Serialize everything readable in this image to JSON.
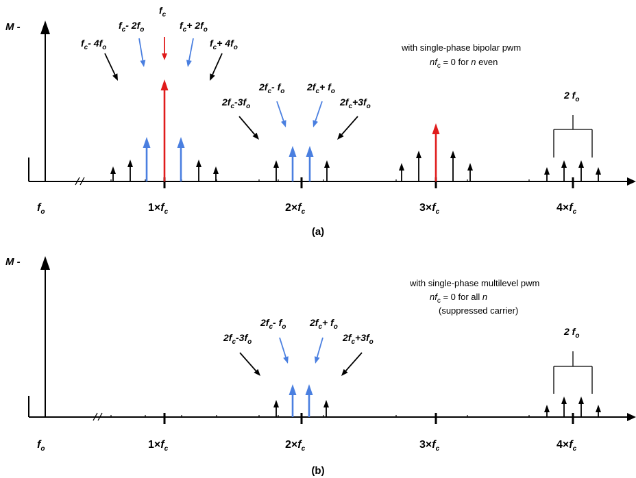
{
  "colors": {
    "black": "#000000",
    "blue": "#4a7fe0",
    "red": "#e01b1b"
  },
  "axis_labels": {
    "magnitude": "M -",
    "fundamental": "f",
    "fundamental_sub": "o"
  },
  "ticks": [
    {
      "pre": "1×",
      "main": "f",
      "sub": "c"
    },
    {
      "pre": "2×",
      "main": "f",
      "sub": "c"
    },
    {
      "pre": "3×",
      "main": "f",
      "sub": "c"
    },
    {
      "pre": "4×",
      "main": "f",
      "sub": "c"
    }
  ],
  "panel_a": {
    "caption": "(a)",
    "note_line1": "with single-phase bipolar pwm",
    "note_line2_italic_a": "nf",
    "note_line2_sub": "c",
    "note_line2_mid": " = 0 for ",
    "note_line2_italic_b": "n",
    "note_line2_end": " even",
    "labels": {
      "fc": [
        "f",
        "c",
        "",
        "",
        ""
      ],
      "fc_minus_2fo": [
        "f",
        "c",
        "- 2f",
        "o",
        ""
      ],
      "fc_plus_2fo": [
        "f",
        "c",
        "+ 2f",
        "o",
        ""
      ],
      "fc_minus_4fo": [
        "f",
        "c",
        "- 4f",
        "o",
        ""
      ],
      "fc_plus_4fo": [
        "f",
        "c",
        "+ 4f",
        "o",
        ""
      ],
      "2fc_minus_fo": [
        "2f",
        "c",
        "- f",
        "o",
        ""
      ],
      "2fc_plus_fo": [
        "2f",
        "c",
        "+ f",
        "o",
        ""
      ],
      "2fc_minus_3fo": [
        "2f",
        "c",
        "-3f",
        "o",
        ""
      ],
      "2fc_plus_3fo": [
        "2f",
        "c",
        "+3f",
        "o",
        ""
      ],
      "2fo": [
        "2 f",
        "o",
        "",
        "",
        ""
      ]
    }
  },
  "panel_b": {
    "caption": "(b)",
    "note_line1": "with single-phase multilevel pwm",
    "note_line2_italic_a": "nf",
    "note_line2_sub": "c",
    "note_line2_mid": " = 0 for all ",
    "note_line2_italic_b": "n",
    "note_line2_end": "",
    "note_line3": "(suppressed carrier)",
    "labels": {
      "2fc_minus_fo": [
        "2f",
        "c",
        "- f",
        "o",
        ""
      ],
      "2fc_plus_fo": [
        "2f",
        "c",
        "+ f",
        "o",
        ""
      ],
      "2fc_minus_3fo": [
        "2f",
        "c",
        "-3f",
        "o",
        ""
      ],
      "2fc_plus_3fo": [
        "2f",
        "c",
        "+3f",
        "o",
        ""
      ],
      "2fo": [
        "2 f",
        "o",
        "",
        "",
        ""
      ]
    }
  }
}
